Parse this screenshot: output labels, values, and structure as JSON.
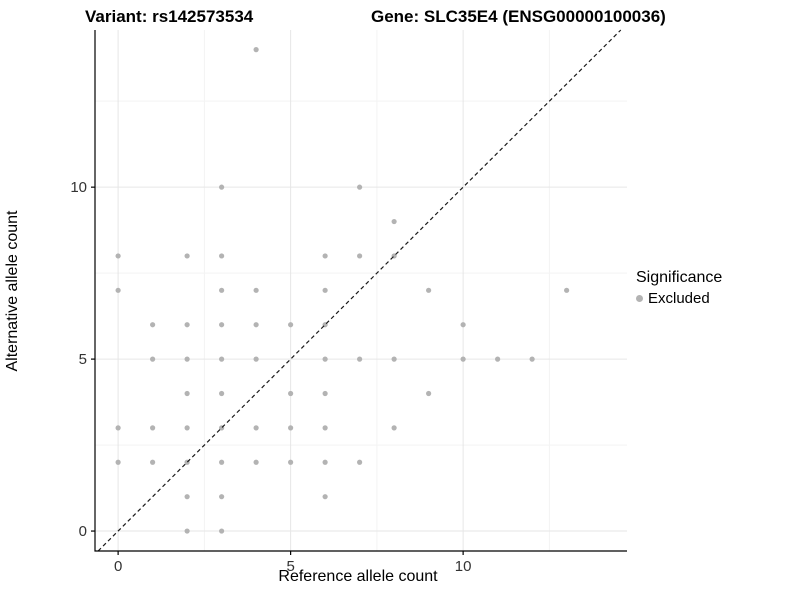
{
  "chart_data": {
    "type": "scatter",
    "variant_title": "Variant: rs142573534",
    "gene_title": "Gene: SLC35E4 (ENSG00000100036)",
    "xlabel": "Reference allele count",
    "ylabel": "Alternative allele count",
    "x_ticks_major": [
      0,
      5,
      10
    ],
    "x_ticks_minor": [
      2.5,
      7.5,
      12.5
    ],
    "y_ticks_major": [
      0,
      5,
      10
    ],
    "y_ticks_minor": [
      2.5,
      7.5,
      12.5
    ],
    "xlim": [
      -0.67,
      14.75
    ],
    "ylim": [
      -0.58,
      14.57
    ],
    "grid": {
      "major_color": "#e6e6e6",
      "minor_color": "#f3f3f3"
    },
    "axis_color": "#000000",
    "tick_label_color": "#333333",
    "identity_line": {
      "style": "dashed",
      "slope": 1,
      "intercept": 0,
      "color": "#1a1a1a"
    },
    "legend": {
      "title": "Significance",
      "position": "right",
      "items": [
        {
          "label": "Excluded",
          "color": "#b3b3b3"
        }
      ]
    },
    "series": [
      {
        "name": "Excluded",
        "color": "#b3b3b3",
        "points": [
          [
            0,
            2
          ],
          [
            0,
            3
          ],
          [
            0,
            7
          ],
          [
            0,
            8
          ],
          [
            1,
            2
          ],
          [
            1,
            3
          ],
          [
            1,
            5
          ],
          [
            1,
            6
          ],
          [
            2,
            0
          ],
          [
            2,
            1
          ],
          [
            2,
            2
          ],
          [
            2,
            3
          ],
          [
            2,
            4
          ],
          [
            2,
            5
          ],
          [
            2,
            6
          ],
          [
            2,
            8
          ],
          [
            3,
            0
          ],
          [
            3,
            1
          ],
          [
            3,
            2
          ],
          [
            3,
            3
          ],
          [
            3,
            4
          ],
          [
            3,
            5
          ],
          [
            3,
            6
          ],
          [
            3,
            7
          ],
          [
            3,
            8
          ],
          [
            3,
            10
          ],
          [
            4,
            2
          ],
          [
            4,
            3
          ],
          [
            4,
            5
          ],
          [
            4,
            6
          ],
          [
            4,
            7
          ],
          [
            4,
            14
          ],
          [
            5,
            2
          ],
          [
            5,
            3
          ],
          [
            5,
            4
          ],
          [
            5,
            6
          ],
          [
            6,
            1
          ],
          [
            6,
            2
          ],
          [
            6,
            3
          ],
          [
            6,
            4
          ],
          [
            6,
            5
          ],
          [
            6,
            6
          ],
          [
            6,
            7
          ],
          [
            6,
            8
          ],
          [
            7,
            2
          ],
          [
            7,
            5
          ],
          [
            7,
            8
          ],
          [
            7,
            10
          ],
          [
            8,
            3
          ],
          [
            8,
            5
          ],
          [
            8,
            8
          ],
          [
            8,
            9
          ],
          [
            9,
            4
          ],
          [
            9,
            7
          ],
          [
            10,
            5
          ],
          [
            10,
            6
          ],
          [
            11,
            5
          ],
          [
            12,
            5
          ],
          [
            13,
            7
          ]
        ]
      }
    ]
  }
}
